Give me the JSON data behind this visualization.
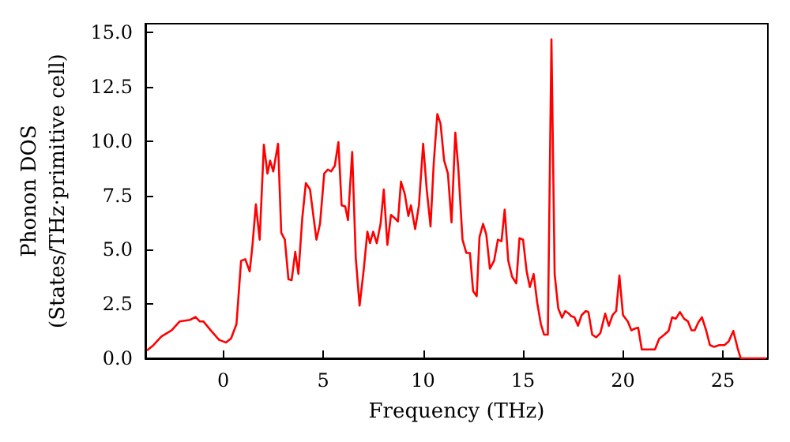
{
  "chart_data": {
    "type": "line",
    "xlabel": "Frequency (THz)",
    "ylabel": "Phonon DOS\n(States/THz·primitive cell)",
    "xlim": [
      -3.9,
      27.25
    ],
    "ylim": [
      0,
      15.4
    ],
    "xticks": [
      0,
      5,
      10,
      15,
      20,
      25
    ],
    "yticks": [
      {
        "value": 0,
        "label": "0.0"
      },
      {
        "value": 2.5,
        "label": "2.5"
      },
      {
        "value": 5,
        "label": "5.0"
      },
      {
        "value": 7.5,
        "label": "7.5"
      },
      {
        "value": 10,
        "label": "10.0"
      },
      {
        "value": 12.5,
        "label": "12.5"
      },
      {
        "value": 15,
        "label": "15.0"
      }
    ],
    "grid": false,
    "marker": "none",
    "line_style": "solid",
    "series": [
      {
        "color": "#ff0000",
        "x": [
          -3.82,
          -3.5,
          -3.1,
          -2.58,
          -2.18,
          -1.66,
          -1.39,
          -1.18,
          -1.0,
          -0.6,
          -0.21,
          0.13,
          0.39,
          0.66,
          0.89,
          1.1,
          1.32,
          1.45,
          1.63,
          1.82,
          2.03,
          2.21,
          2.34,
          2.5,
          2.74,
          2.9,
          3.08,
          3.26,
          3.42,
          3.6,
          3.76,
          3.95,
          4.13,
          4.34,
          4.66,
          4.84,
          5.05,
          5.24,
          5.39,
          5.58,
          5.76,
          5.92,
          6.1,
          6.24,
          6.45,
          6.63,
          6.82,
          7.03,
          7.21,
          7.34,
          7.5,
          7.68,
          7.87,
          8.03,
          8.21,
          8.39,
          8.6,
          8.74,
          8.89,
          9.08,
          9.26,
          9.39,
          9.6,
          9.79,
          10.0,
          10.18,
          10.37,
          10.53,
          10.71,
          10.87,
          11.05,
          11.24,
          11.42,
          11.61,
          11.76,
          11.97,
          12.16,
          12.34,
          12.5,
          12.68,
          12.82,
          13.0,
          13.16,
          13.34,
          13.55,
          13.74,
          13.92,
          14.08,
          14.26,
          14.45,
          14.66,
          14.82,
          15.0,
          15.18,
          15.34,
          15.53,
          15.71,
          15.89,
          16.05,
          16.24,
          16.42,
          16.58,
          16.76,
          16.95,
          17.11,
          17.29,
          17.41,
          17.57,
          17.75,
          17.93,
          18.14,
          18.27,
          18.46,
          18.66,
          18.87,
          19.11,
          19.29,
          19.48,
          19.66,
          19.82,
          20.0,
          20.24,
          20.42,
          20.63,
          20.76,
          20.94,
          21.23,
          21.6,
          21.81,
          22.07,
          22.28,
          22.46,
          22.64,
          22.85,
          23.06,
          23.25,
          23.43,
          23.59,
          23.77,
          23.95,
          24.16,
          24.35,
          24.55,
          24.82,
          25.08,
          25.29,
          25.52,
          25.73,
          25.89,
          26.13,
          27.17
        ],
        "values": [
          0.36,
          0.6,
          1.0,
          1.29,
          1.7,
          1.77,
          1.9,
          1.7,
          1.7,
          1.26,
          0.85,
          0.73,
          0.92,
          1.58,
          4.49,
          4.56,
          4.0,
          5.1,
          7.09,
          5.46,
          9.83,
          8.5,
          9.1,
          8.6,
          9.88,
          5.78,
          5.46,
          3.64,
          3.6,
          4.9,
          3.88,
          6.43,
          8.06,
          7.77,
          5.46,
          6.19,
          8.5,
          8.69,
          8.6,
          8.86,
          9.95,
          7.04,
          6.99,
          6.36,
          9.5,
          4.6,
          2.43,
          4.1,
          5.83,
          5.3,
          5.83,
          5.3,
          6.19,
          7.77,
          5.22,
          6.6,
          6.43,
          6.3,
          8.13,
          7.57,
          6.55,
          7.04,
          5.95,
          7.04,
          9.88,
          7.77,
          6.07,
          8.98,
          11.24,
          10.8,
          9.1,
          8.5,
          6.26,
          10.39,
          8.74,
          5.46,
          4.85,
          4.85,
          3.1,
          2.86,
          5.58,
          6.19,
          5.7,
          4.13,
          4.49,
          5.46,
          5.39,
          6.84,
          4.49,
          3.76,
          3.45,
          5.53,
          5.46,
          4.0,
          3.28,
          3.88,
          2.55,
          1.58,
          1.09,
          1.09,
          14.68,
          3.88,
          2.3,
          1.87,
          2.18,
          2.06,
          1.94,
          1.89,
          1.5,
          1.99,
          2.18,
          2.13,
          1.09,
          0.97,
          1.17,
          2.06,
          1.5,
          1.99,
          2.18,
          3.81,
          1.99,
          1.7,
          1.29,
          1.38,
          1.41,
          0.41,
          0.41,
          0.41,
          0.9,
          1.09,
          1.26,
          1.89,
          1.82,
          2.13,
          1.82,
          1.7,
          1.29,
          1.29,
          1.65,
          1.89,
          1.29,
          0.61,
          0.53,
          0.61,
          0.61,
          0.78,
          1.26,
          0.49,
          0,
          0,
          0
        ]
      }
    ]
  }
}
